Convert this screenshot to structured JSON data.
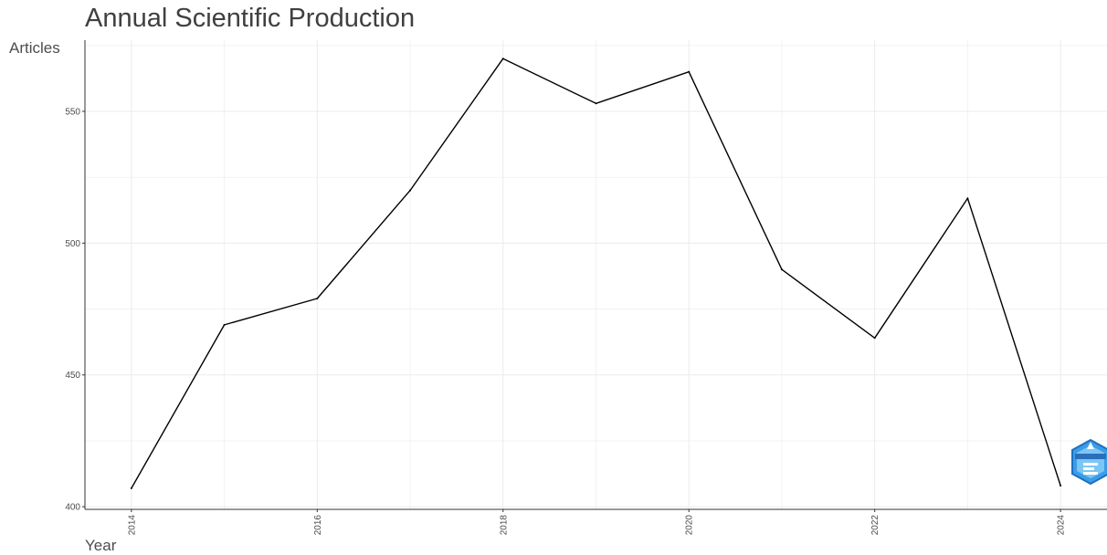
{
  "chart_data": {
    "type": "line",
    "title": "Annual Scientific Production",
    "xlabel": "Year",
    "ylabel": "Articles",
    "x": [
      2014,
      2015,
      2016,
      2017,
      2018,
      2019,
      2020,
      2021,
      2022,
      2023,
      2024
    ],
    "series": [
      {
        "values": [
          407,
          469,
          479,
          520,
          570,
          553,
          565,
          490,
          464,
          517,
          408
        ]
      }
    ],
    "x_ticks": [
      "2014",
      "2016",
      "2018",
      "2020",
      "2022",
      "2024"
    ],
    "y_ticks": [
      "400",
      "450",
      "500",
      "550"
    ],
    "xlim": [
      2013.5,
      2024.5
    ],
    "ylim": [
      399,
      577
    ],
    "grid": true,
    "line_color": "#000000",
    "grid_color": "#ebebeb"
  }
}
